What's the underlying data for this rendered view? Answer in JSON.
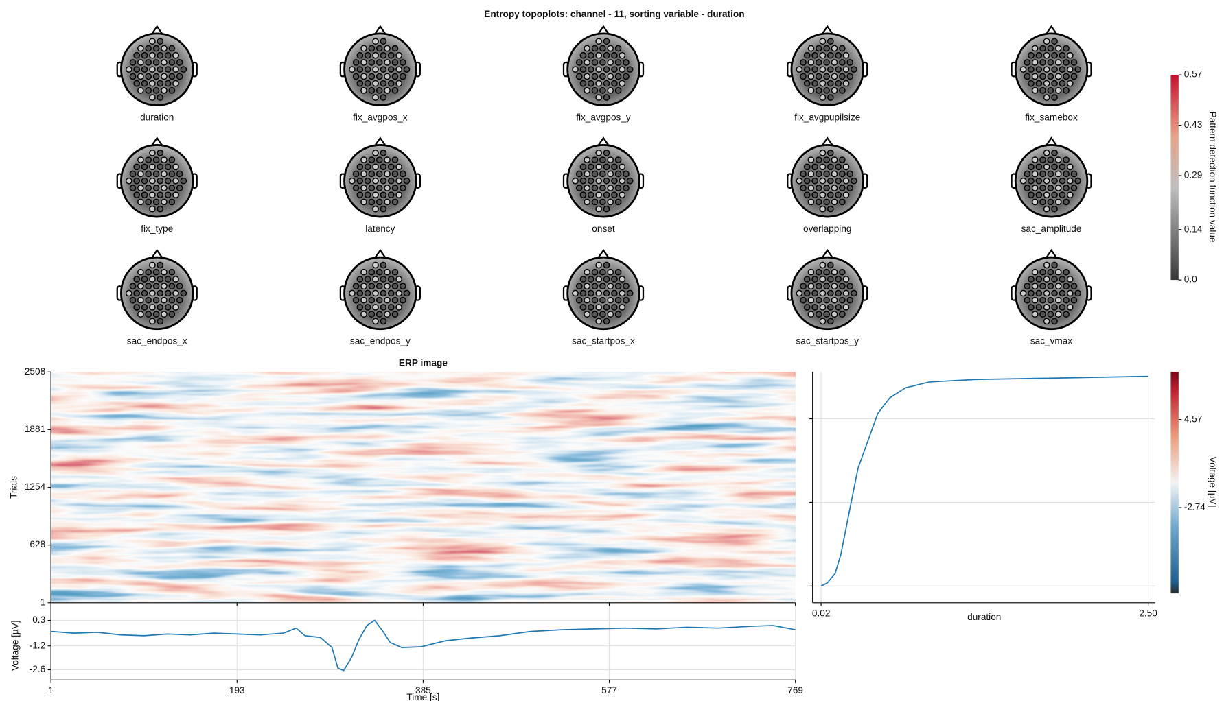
{
  "chart_data": [
    {
      "type": "topoplot",
      "title": "Entropy topoplots: channel - 11, sorting variable - duration",
      "labels": [
        "duration",
        "fix_avgpos_x",
        "fix_avgpos_y",
        "fix_avgpupilsize",
        "fix_samebox",
        "fix_type",
        "latency",
        "onset",
        "overlapping",
        "sac_amplitude",
        "sac_endpos_x",
        "sac_endpos_y",
        "sac_startpos_x",
        "sac_startpos_y",
        "sac_vmax"
      ],
      "colorbar_label": "Pattern detection function value",
      "ylim": [
        0,
        0.57
      ],
      "yticks": [
        {
          "value": 0,
          "label": "0.0"
        },
        0.14,
        0.29,
        0.43,
        0.57
      ]
    },
    {
      "type": "heatmap",
      "title": "ERP image",
      "ylabel": "Trials",
      "ylim": [
        1,
        2508
      ],
      "yticks": [
        1,
        628,
        1254,
        1881,
        2508
      ],
      "xlim": [
        1,
        769
      ],
      "colorbar_label": "Voltage [µV]",
      "zlim": [
        -9.86,
        8.52
      ],
      "zticks": [
        4.57,
        -2.74
      ]
    },
    {
      "type": "line",
      "ylabel": "Voltage [µV]",
      "xlabel": "Time [s]",
      "color": "#1f78b4",
      "grid": true,
      "x": [
        1,
        25,
        49,
        73,
        97,
        121,
        145,
        169,
        193,
        217,
        241,
        254,
        263,
        279,
        291,
        297,
        303,
        311,
        319,
        327,
        335,
        343,
        351,
        363,
        383,
        408,
        432,
        464,
        496,
        528,
        561,
        593,
        625,
        657,
        689,
        722,
        746,
        769
      ],
      "values": [
        -0.35,
        -0.45,
        -0.4,
        -0.55,
        -0.6,
        -0.5,
        -0.55,
        -0.45,
        -0.5,
        -0.55,
        -0.45,
        -0.15,
        -0.6,
        -0.7,
        -1.3,
        -2.5,
        -2.65,
        -1.9,
        -0.8,
        0.0,
        0.3,
        -0.3,
        -1.0,
        -1.3,
        -1.25,
        -0.9,
        -0.75,
        -0.6,
        -0.35,
        -0.25,
        -0.2,
        -0.15,
        -0.2,
        -0.1,
        -0.15,
        -0.05,
        0.0,
        -0.25
      ],
      "xlim": [
        1,
        769
      ],
      "xticks": [
        1,
        193,
        385,
        577,
        769
      ],
      "ylim": [
        -3.2,
        1.2
      ],
      "yticks": [
        0.3,
        -1.2,
        -2.6
      ]
    },
    {
      "type": "line",
      "xlabel": "duration",
      "color": "#1f78b4",
      "grid": true,
      "show_ytick_labels": false,
      "x": [
        0.02,
        0.067,
        0.126,
        0.17,
        0.24,
        0.3,
        0.36,
        0.45,
        0.54,
        0.66,
        0.84,
        1.19,
        1.78,
        2.5
      ],
      "values": [
        1,
        37,
        150,
        380,
        940,
        1410,
        1670,
        2065,
        2250,
        2370,
        2440,
        2470,
        2486,
        2508
      ],
      "xlim": [
        -0.045,
        2.553
      ],
      "xticks": [
        0.02,
        {
          "value": 2.5,
          "label": "2.50"
        }
      ],
      "ylim": [
        -200,
        2560
      ],
      "yticks": [
        0,
        1000,
        2000
      ]
    }
  ]
}
